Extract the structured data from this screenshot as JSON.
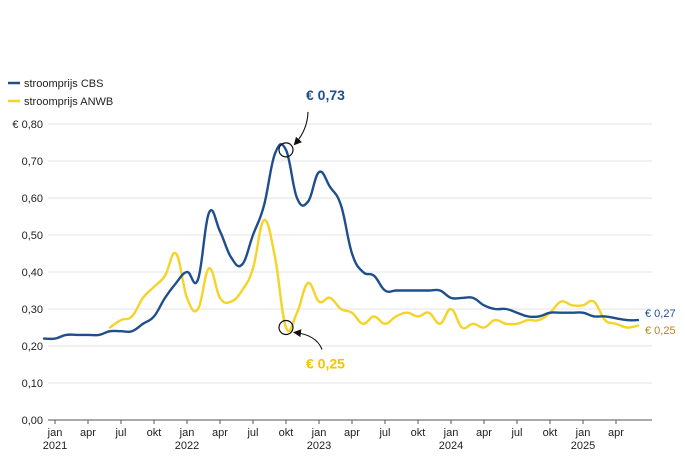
{
  "chart_data": {
    "type": "line",
    "ylim": [
      0,
      0.8
    ],
    "y_ticks": [
      {
        "value": 0.0,
        "label": "0,00"
      },
      {
        "value": 0.1,
        "label": "0,10"
      },
      {
        "value": 0.2,
        "label": "0,20"
      },
      {
        "value": 0.3,
        "label": "0,30"
      },
      {
        "value": 0.4,
        "label": "0,40"
      },
      {
        "value": 0.5,
        "label": "0,50"
      },
      {
        "value": 0.6,
        "label": "0,60"
      },
      {
        "value": 0.7,
        "label": "0,70"
      },
      {
        "value": 0.8,
        "label": "€ 0,80"
      }
    ],
    "x_ticks": [
      {
        "date": "2021-01",
        "label": "jan",
        "year": "2021"
      },
      {
        "date": "2021-04",
        "label": "apr"
      },
      {
        "date": "2021-07",
        "label": "jul"
      },
      {
        "date": "2021-10",
        "label": "okt"
      },
      {
        "date": "2022-01",
        "label": "jan",
        "year": "2022"
      },
      {
        "date": "2022-04",
        "label": "apr"
      },
      {
        "date": "2022-07",
        "label": "jul"
      },
      {
        "date": "2022-10",
        "label": "okt"
      },
      {
        "date": "2023-01",
        "label": "jan",
        "year": "2023"
      },
      {
        "date": "2023-04",
        "label": "apr"
      },
      {
        "date": "2023-07",
        "label": "jul"
      },
      {
        "date": "2023-10",
        "label": "okt"
      },
      {
        "date": "2024-01",
        "label": "jan",
        "year": "2024"
      },
      {
        "date": "2024-04",
        "label": "apr"
      },
      {
        "date": "2024-07",
        "label": "jul"
      },
      {
        "date": "2024-10",
        "label": "okt"
      },
      {
        "date": "2025-01",
        "label": "jan",
        "year": "2025"
      },
      {
        "date": "2025-04",
        "label": "apr"
      }
    ],
    "grid": true,
    "legend_position": "top-left",
    "series": [
      {
        "name": "stroomprijs CBS",
        "color": "#1f4e8c",
        "end_label": "€ 0,27",
        "points": [
          [
            "2020-12",
            0.22
          ],
          [
            "2021-01",
            0.22
          ],
          [
            "2021-02",
            0.23
          ],
          [
            "2021-03",
            0.23
          ],
          [
            "2021-04",
            0.23
          ],
          [
            "2021-05",
            0.23
          ],
          [
            "2021-06",
            0.24
          ],
          [
            "2021-07",
            0.24
          ],
          [
            "2021-08",
            0.24
          ],
          [
            "2021-09",
            0.26
          ],
          [
            "2021-10",
            0.28
          ],
          [
            "2021-11",
            0.33
          ],
          [
            "2021-12",
            0.37
          ],
          [
            "2022-01",
            0.4
          ],
          [
            "2022-02",
            0.38
          ],
          [
            "2022-03",
            0.56
          ],
          [
            "2022-04",
            0.51
          ],
          [
            "2022-05",
            0.44
          ],
          [
            "2022-06",
            0.42
          ],
          [
            "2022-07",
            0.5
          ],
          [
            "2022-08",
            0.58
          ],
          [
            "2022-09",
            0.72
          ],
          [
            "2022-10",
            0.73
          ],
          [
            "2022-11",
            0.6
          ],
          [
            "2022-12",
            0.59
          ],
          [
            "2023-01",
            0.67
          ],
          [
            "2023-02",
            0.63
          ],
          [
            "2023-03",
            0.58
          ],
          [
            "2023-04",
            0.45
          ],
          [
            "2023-05",
            0.4
          ],
          [
            "2023-06",
            0.39
          ],
          [
            "2023-07",
            0.35
          ],
          [
            "2023-08",
            0.35
          ],
          [
            "2023-09",
            0.35
          ],
          [
            "2023-10",
            0.35
          ],
          [
            "2023-11",
            0.35
          ],
          [
            "2023-12",
            0.35
          ],
          [
            "2024-01",
            0.33
          ],
          [
            "2024-02",
            0.33
          ],
          [
            "2024-03",
            0.33
          ],
          [
            "2024-04",
            0.31
          ],
          [
            "2024-05",
            0.3
          ],
          [
            "2024-06",
            0.3
          ],
          [
            "2024-07",
            0.29
          ],
          [
            "2024-08",
            0.28
          ],
          [
            "2024-09",
            0.28
          ],
          [
            "2024-10",
            0.29
          ],
          [
            "2024-11",
            0.29
          ],
          [
            "2024-12",
            0.29
          ],
          [
            "2025-01",
            0.29
          ],
          [
            "2025-02",
            0.28
          ],
          [
            "2025-03",
            0.28
          ],
          [
            "2025-04",
            0.275
          ],
          [
            "2025-05",
            0.27
          ],
          [
            "2025-06",
            0.27
          ]
        ]
      },
      {
        "name": "stroomprijs ANWB",
        "color": "#f5d327",
        "end_label": "€ 0,25",
        "points": [
          [
            "2021-06",
            0.25
          ],
          [
            "2021-07",
            0.27
          ],
          [
            "2021-08",
            0.28
          ],
          [
            "2021-09",
            0.33
          ],
          [
            "2021-10",
            0.36
          ],
          [
            "2021-11",
            0.39
          ],
          [
            "2021-12",
            0.45
          ],
          [
            "2022-01",
            0.33
          ],
          [
            "2022-02",
            0.3
          ],
          [
            "2022-03",
            0.41
          ],
          [
            "2022-04",
            0.33
          ],
          [
            "2022-05",
            0.32
          ],
          [
            "2022-06",
            0.35
          ],
          [
            "2022-07",
            0.41
          ],
          [
            "2022-08",
            0.54
          ],
          [
            "2022-09",
            0.44
          ],
          [
            "2022-10",
            0.25
          ],
          [
            "2022-11",
            0.29
          ],
          [
            "2022-12",
            0.37
          ],
          [
            "2023-01",
            0.32
          ],
          [
            "2023-02",
            0.33
          ],
          [
            "2023-03",
            0.3
          ],
          [
            "2023-04",
            0.29
          ],
          [
            "2023-05",
            0.26
          ],
          [
            "2023-06",
            0.28
          ],
          [
            "2023-07",
            0.26
          ],
          [
            "2023-08",
            0.28
          ],
          [
            "2023-09",
            0.29
          ],
          [
            "2023-10",
            0.28
          ],
          [
            "2023-11",
            0.29
          ],
          [
            "2023-12",
            0.26
          ],
          [
            "2024-01",
            0.3
          ],
          [
            "2024-02",
            0.25
          ],
          [
            "2024-03",
            0.26
          ],
          [
            "2024-04",
            0.25
          ],
          [
            "2024-05",
            0.27
          ],
          [
            "2024-06",
            0.26
          ],
          [
            "2024-07",
            0.26
          ],
          [
            "2024-08",
            0.27
          ],
          [
            "2024-09",
            0.27
          ],
          [
            "2024-10",
            0.29
          ],
          [
            "2024-11",
            0.32
          ],
          [
            "2024-12",
            0.31
          ],
          [
            "2025-01",
            0.31
          ],
          [
            "2025-02",
            0.32
          ],
          [
            "2025-03",
            0.27
          ],
          [
            "2025-04",
            0.26
          ],
          [
            "2025-05",
            0.25
          ],
          [
            "2025-06",
            0.255
          ]
        ]
      }
    ],
    "annotations": [
      {
        "series": 0,
        "date": "2022-10",
        "value": 0.73,
        "label": "€ 0,73"
      },
      {
        "series": 1,
        "date": "2022-10",
        "value": 0.25,
        "label": "€ 0,25"
      }
    ]
  }
}
